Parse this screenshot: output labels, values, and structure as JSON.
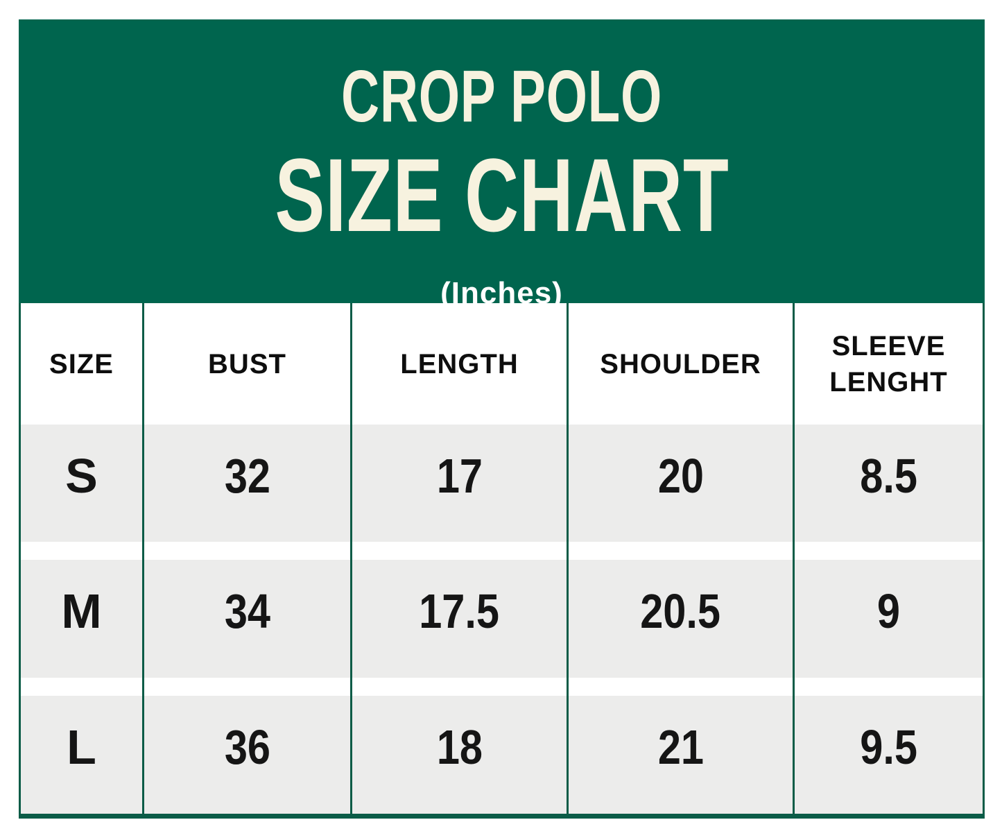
{
  "banner": {
    "title_line1": "CROP POLO",
    "title_line2": "SIZE CHART",
    "subtitle": "(Inches)",
    "background_color": "#00654E",
    "title_color": "#F7F2DF",
    "subtitle_color": "#FFFFFF"
  },
  "table": {
    "row_background": "#ECECEB",
    "divider_color": "#0B5C47",
    "size_letter_color": "#17694F"
  },
  "chart_data": {
    "type": "table",
    "title": "CROP POLO SIZE CHART",
    "subtitle": "(Inches)",
    "columns": [
      "SIZE",
      "BUST",
      "LENGTH",
      "SHOULDER",
      "SLEEVE LENGHT"
    ],
    "rows": [
      [
        "S",
        "32",
        "17",
        "20",
        "8.5"
      ],
      [
        "M",
        "34",
        "17.5",
        "20.5",
        "9"
      ],
      [
        "L",
        "36",
        "18",
        "21",
        "9.5"
      ]
    ]
  }
}
